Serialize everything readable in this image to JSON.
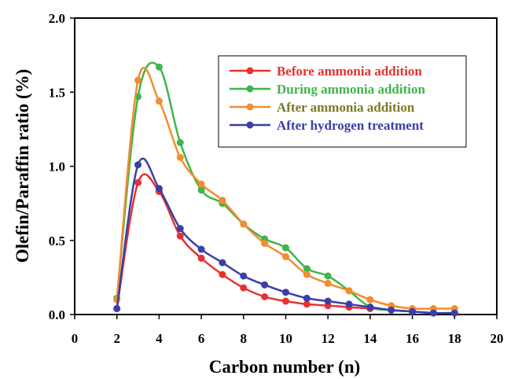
{
  "chart_data": {
    "type": "line",
    "title": "",
    "xlabel": "Carbon number (n)",
    "ylabel": "Olefin/Paraffin ratio (%)",
    "xlim": [
      0,
      20
    ],
    "ylim": [
      0,
      2.0
    ],
    "xticks": [
      "0",
      "2",
      "4",
      "6",
      "8",
      "10",
      "12",
      "14",
      "16",
      "18",
      "20"
    ],
    "yticks": [
      "0.0",
      "0.5",
      "1.0",
      "1.5",
      "2.0"
    ],
    "grid": false,
    "legend_position": "top-right",
    "x": [
      2,
      3,
      4,
      5,
      6,
      7,
      8,
      9,
      10,
      11,
      12,
      13,
      14,
      15,
      16,
      17,
      18
    ],
    "series": [
      {
        "name": "Before ammonia addition",
        "color": "#e8312f",
        "values": [
          0.04,
          0.89,
          0.83,
          0.53,
          0.38,
          0.27,
          0.18,
          0.12,
          0.09,
          0.07,
          0.06,
          0.05,
          0.04,
          0.03,
          0.02,
          0.01,
          0.01
        ]
      },
      {
        "name": "During ammonia addition",
        "color": "#3fb54a",
        "values": [
          0.11,
          1.47,
          1.67,
          1.16,
          0.84,
          0.75,
          0.61,
          0.51,
          0.45,
          0.31,
          0.26,
          0.16,
          0.05,
          0.03,
          0.02,
          0.01,
          0.01
        ]
      },
      {
        "name": "After ammonia addition",
        "color": "#f28c30",
        "values": [
          0.1,
          1.58,
          1.44,
          1.06,
          0.88,
          0.77,
          0.61,
          0.48,
          0.39,
          0.27,
          0.21,
          0.16,
          0.1,
          0.06,
          0.04,
          0.04,
          0.04
        ]
      },
      {
        "name": "After hydrogen treatment",
        "color": "#3a3fa8",
        "values": [
          0.04,
          1.01,
          0.85,
          0.58,
          0.44,
          0.35,
          0.26,
          0.2,
          0.15,
          0.11,
          0.09,
          0.07,
          0.05,
          0.03,
          0.02,
          0.01,
          0.01
        ]
      }
    ],
    "legend_text_colors": [
      "#e8312f",
      "#3fb54a",
      "#7a7a28",
      "#3a3fa8"
    ]
  }
}
